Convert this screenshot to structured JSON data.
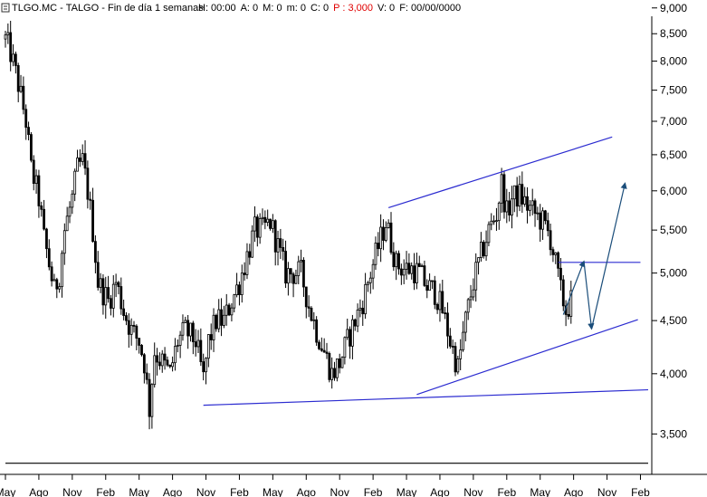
{
  "header": {
    "ticker": "TLGO.MC",
    "separator1": " - ",
    "name": "TALGO",
    "separator2": " - ",
    "period": "Fin de día 1 semanas",
    "fields": [
      {
        "label": "H:",
        "value": "00:00",
        "color": "#000000"
      },
      {
        "label": "A:",
        "value": "0",
        "color": "#000000"
      },
      {
        "label": "M:",
        "value": "0",
        "color": "#000000"
      },
      {
        "label": "m:",
        "value": "0",
        "color": "#000000"
      },
      {
        "label": "C:",
        "value": "0",
        "color": "#000000"
      },
      {
        "label": "P :",
        "value": "3,000",
        "color": "#e00000"
      },
      {
        "label": "V:",
        "value": "0",
        "color": "#000000"
      },
      {
        "label": "F:",
        "value": "00/00/0000",
        "color": "#000000"
      }
    ]
  },
  "chart_data": {
    "type": "candlestick",
    "title": "TLGO.MC - TALGO - Fin de día 1 semanas",
    "y_scale": "log",
    "ylim": [
      3200,
      9050
    ],
    "y_ticks": [
      3500,
      4000,
      4500,
      5000,
      5500,
      6000,
      6500,
      7000,
      7500,
      8000,
      8500,
      9000
    ],
    "y_tick_labels": [
      "3,500",
      "4,000",
      "4,500",
      "5,000",
      "5,500",
      "6,000",
      "6,500",
      "7,000",
      "7,500",
      "8,000",
      "8,500",
      "9,000"
    ],
    "x_tick_labels": [
      "May",
      "Ago",
      "Nov",
      "Feb",
      "May",
      "Ago",
      "Nov",
      "Feb",
      "May",
      "Ago",
      "Nov",
      "Feb",
      "May",
      "Ago",
      "Nov",
      "Feb",
      "May",
      "Ago",
      "Nov",
      "Feb"
    ],
    "x_tick_index": [
      0,
      13,
      26,
      39,
      52,
      65,
      78,
      91,
      104,
      117,
      130,
      143,
      156,
      169,
      182,
      195,
      208,
      221,
      234,
      247
    ],
    "x_range": [
      0,
      250
    ],
    "close_anchors": [
      [
        0,
        8400
      ],
      [
        2,
        8150
      ],
      [
        5,
        7600
      ],
      [
        8,
        7000
      ],
      [
        10,
        6300
      ],
      [
        13,
        5900
      ],
      [
        15,
        5400
      ],
      [
        17,
        5100
      ],
      [
        19,
        4800
      ],
      [
        21,
        5000
      ],
      [
        23,
        5500
      ],
      [
        26,
        5900
      ],
      [
        28,
        6300
      ],
      [
        30,
        6400
      ],
      [
        32,
        6000
      ],
      [
        34,
        5500
      ],
      [
        36,
        4900
      ],
      [
        38,
        4800
      ],
      [
        40,
        4700
      ],
      [
        43,
        4900
      ],
      [
        46,
        4600
      ],
      [
        49,
        4400
      ],
      [
        52,
        4300
      ],
      [
        54,
        4100
      ],
      [
        56,
        3700
      ],
      [
        58,
        4200
      ],
      [
        61,
        4100
      ],
      [
        64,
        4000
      ],
      [
        67,
        4300
      ],
      [
        70,
        4400
      ],
      [
        74,
        4300
      ],
      [
        77,
        3950
      ],
      [
        79,
        4300
      ],
      [
        82,
        4500
      ],
      [
        85,
        4500
      ],
      [
        88,
        4700
      ],
      [
        91,
        4900
      ],
      [
        94,
        5200
      ],
      [
        97,
        5500
      ],
      [
        100,
        5500
      ],
      [
        103,
        5600
      ],
      [
        106,
        5300
      ],
      [
        109,
        5000
      ],
      [
        112,
        5000
      ],
      [
        115,
        5000
      ],
      [
        118,
        4650
      ],
      [
        121,
        4400
      ],
      [
        124,
        4200
      ],
      [
        127,
        4000
      ],
      [
        130,
        4100
      ],
      [
        133,
        4300
      ],
      [
        136,
        4500
      ],
      [
        139,
        4700
      ],
      [
        142,
        5000
      ],
      [
        145,
        5300
      ],
      [
        148,
        5600
      ],
      [
        150,
        5350
      ],
      [
        152,
        5100
      ],
      [
        155,
        5050
      ],
      [
        158,
        5050
      ],
      [
        161,
        5000
      ],
      [
        164,
        4850
      ],
      [
        167,
        4800
      ],
      [
        170,
        4600
      ],
      [
        173,
        4300
      ],
      [
        176,
        4050
      ],
      [
        179,
        4500
      ],
      [
        182,
        4900
      ],
      [
        185,
        5200
      ],
      [
        188,
        5500
      ],
      [
        191,
        5700
      ],
      [
        193,
        6100
      ],
      [
        195,
        5700
      ],
      [
        197,
        5900
      ],
      [
        200,
        5950
      ],
      [
        203,
        5800
      ],
      [
        206,
        5700
      ],
      [
        209,
        5600
      ],
      [
        212,
        5400
      ],
      [
        214,
        5100
      ],
      [
        216,
        4800
      ],
      [
        218,
        4600
      ],
      [
        220,
        4700
      ]
    ],
    "annotations": {
      "trendlines": [
        {
          "name": "upper-channel",
          "x1": 149,
          "y1": 5780,
          "x2": 236,
          "y2": 6760
        },
        {
          "name": "lower-channel",
          "x1": 160,
          "y1": 3820,
          "x2": 246,
          "y2": 4510
        },
        {
          "name": "long-support",
          "x1": 77,
          "y1": 3730,
          "x2": 250,
          "y2": 3860
        },
        {
          "name": "horizontal-resistance",
          "x1": 215,
          "y1": 5120,
          "x2": 247,
          "y2": 5120
        },
        {
          "name": "base-line",
          "x1": 0,
          "y1": 3280,
          "x2": 250,
          "y2": 3280
        }
      ],
      "projection": [
        [
          217,
          4560
        ],
        [
          225,
          5130
        ],
        [
          228,
          4420
        ],
        [
          241,
          6100
        ]
      ],
      "colors": {
        "trendline": "#2b2bd0",
        "projection": "#1a4d7a",
        "candles": "#000000",
        "base": "#000000"
      }
    }
  }
}
